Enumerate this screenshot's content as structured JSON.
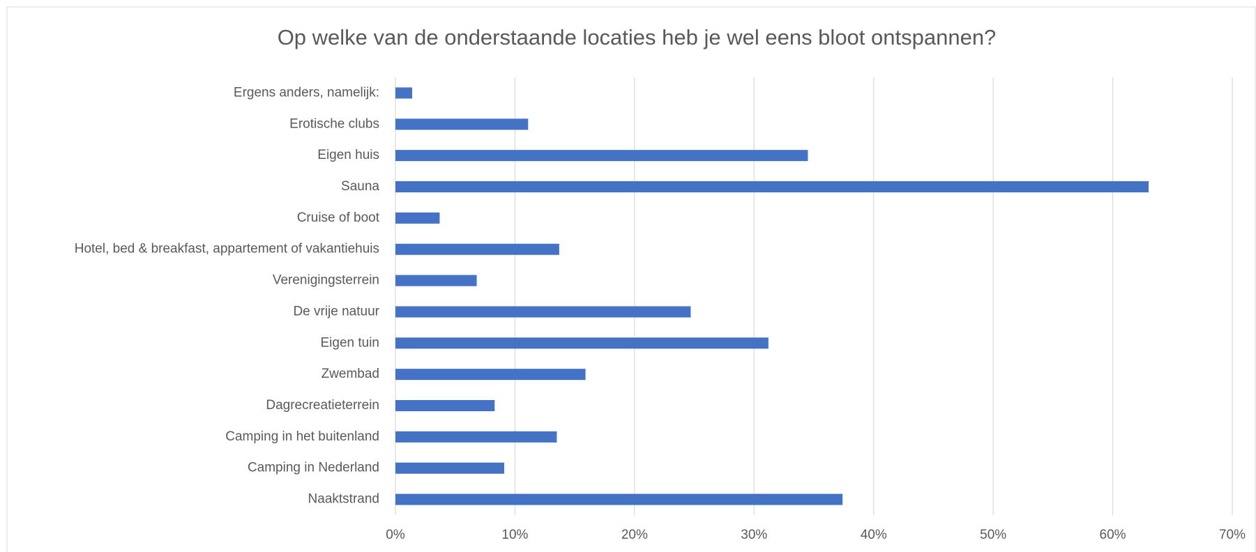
{
  "chart_data": {
    "type": "barh",
    "title": "Op welke van de onderstaande locaties heb je wel eens bloot ontspannen?",
    "categories": [
      "Ergens anders, namelijk:",
      "Erotische clubs",
      "Eigen huis",
      "Sauna",
      "Cruise of boot",
      "Hotel, bed & breakfast, appartement of vakantiehuis",
      "Verenigingsterrein",
      "De vrije natuur",
      "Eigen tuin",
      "Zwembad",
      "Dagrecreatieterrein",
      "Camping in het buitenland",
      "Camping in Nederland",
      "Naaktstrand"
    ],
    "values": [
      1.4,
      11.1,
      34.5,
      63.0,
      3.7,
      13.7,
      6.8,
      24.7,
      31.2,
      15.9,
      8.3,
      13.5,
      9.1,
      37.4
    ],
    "color": "#4472c4",
    "xlim": [
      0,
      70
    ],
    "xticks": [
      {
        "value": 0,
        "label": "0%"
      },
      {
        "value": 10,
        "label": "10%"
      },
      {
        "value": 20,
        "label": "20%"
      },
      {
        "value": 30,
        "label": "30%"
      },
      {
        "value": 40,
        "label": "40%"
      },
      {
        "value": 50,
        "label": "50%"
      },
      {
        "value": 60,
        "label": "60%"
      },
      {
        "value": 70,
        "label": "70%"
      }
    ],
    "grid": true
  }
}
